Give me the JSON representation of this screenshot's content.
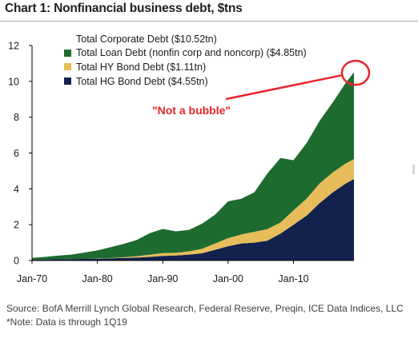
{
  "title": "Chart 1: Nonfinancial business debt, $tns",
  "source": "Source: BofA Merrill Lynch Global Research, Federal Reserve, Preqin, ICE Data Indices, LLC *Note: Data is through 1Q19",
  "annotation": "\"Not a bubble\"",
  "colors": {
    "loan": "#1e6b30",
    "hy": "#e6bd5a",
    "hg": "#12224d",
    "annotation": "#e8262b"
  },
  "chart_data": {
    "type": "area",
    "stacked": true,
    "x_ticks": [
      "Jan-70",
      "Jan-80",
      "Jan-90",
      "Jan-00",
      "Jan-10"
    ],
    "x_range": [
      1970,
      2019.25
    ],
    "ylim": [
      0,
      12
    ],
    "y_ticks": [
      "0",
      "2",
      "4",
      "6",
      "8",
      "10",
      "12"
    ],
    "grid": false,
    "legend": [
      {
        "label": "Total Corporate Debt ($10.52tn)",
        "swatch": false,
        "color": ""
      },
      {
        "label": "Total Loan Debt (nonfin corp and noncorp) ($4.85tn)",
        "swatch": true,
        "color": "#1e6b30"
      },
      {
        "label": "Total HY Bond Debt ($1.11tn)",
        "swatch": true,
        "color": "#e6bd5a"
      },
      {
        "label": "Total HG Bond Debt ($4.55tn)",
        "swatch": true,
        "color": "#12224d"
      }
    ],
    "x": [
      1970,
      1972,
      1974,
      1976,
      1978,
      1980,
      1982,
      1984,
      1986,
      1988,
      1990,
      1992,
      1994,
      1996,
      1998,
      2000,
      2002,
      2004,
      2006,
      2008,
      2010,
      2012,
      2014,
      2016,
      2018,
      2019.25
    ],
    "series": [
      {
        "name": "Total HG Bond Debt ($4.55tn)",
        "values": [
          0.05,
          0.06,
          0.07,
          0.08,
          0.09,
          0.1,
          0.12,
          0.14,
          0.16,
          0.2,
          0.26,
          0.28,
          0.33,
          0.4,
          0.6,
          0.8,
          0.95,
          1.0,
          1.1,
          1.5,
          2.0,
          2.5,
          3.2,
          3.8,
          4.3,
          4.55
        ]
      },
      {
        "name": "Total HY Bond Debt ($1.11tn)",
        "values": [
          0.0,
          0.0,
          0.0,
          0.0,
          0.0,
          0.01,
          0.02,
          0.04,
          0.08,
          0.12,
          0.15,
          0.15,
          0.18,
          0.25,
          0.35,
          0.45,
          0.5,
          0.6,
          0.65,
          0.62,
          0.8,
          0.95,
          1.1,
          1.12,
          1.12,
          1.11
        ]
      },
      {
        "name": "Total Loan Debt (nonfin corp and noncorp) ($4.85tn)",
        "values": [
          0.1,
          0.14,
          0.2,
          0.25,
          0.35,
          0.45,
          0.6,
          0.75,
          0.9,
          1.2,
          1.35,
          1.2,
          1.2,
          1.4,
          1.6,
          2.05,
          2.0,
          2.2,
          3.1,
          3.6,
          2.8,
          3.1,
          3.5,
          3.9,
          4.5,
          4.85
        ]
      }
    ],
    "total_label": "Total Corporate Debt ($10.52tn)"
  }
}
